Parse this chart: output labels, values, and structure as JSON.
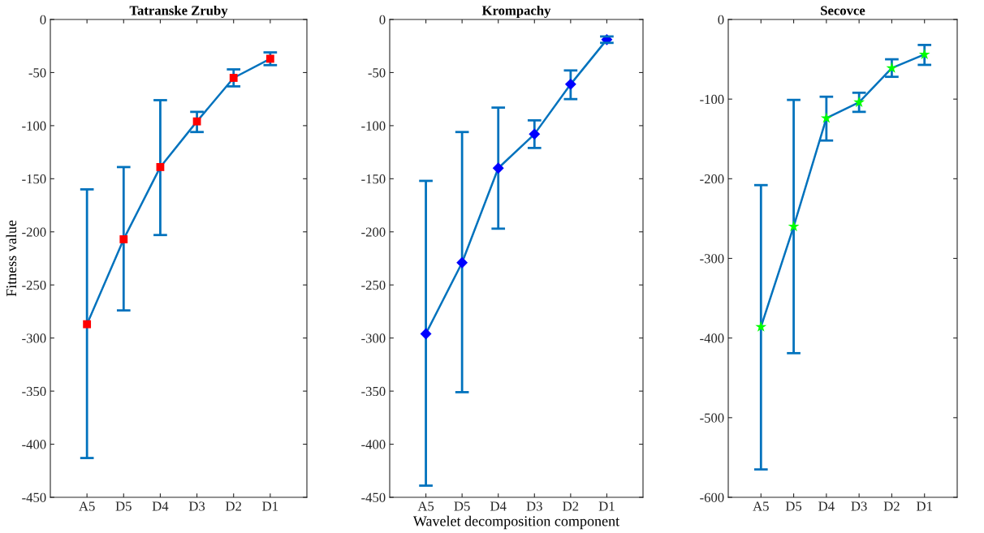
{
  "chart_data": [
    {
      "type": "line",
      "title": "Tatranske Zruby",
      "ylabel": "Fitness value",
      "categories": [
        "A5",
        "D5",
        "D4",
        "D3",
        "D2",
        "D1"
      ],
      "marker": "square",
      "ylim": [
        -450,
        0
      ],
      "yticks": [
        -450,
        -400,
        -350,
        -300,
        -250,
        -200,
        -150,
        -100,
        -50,
        0
      ],
      "grid": false,
      "series": [
        {
          "color": "#0072bd",
          "colors": [
            "#ff0000",
            "#ff0000",
            "#ff0000",
            "#ff0000",
            "#ff0000",
            "#ff0000"
          ],
          "values": [
            -287,
            -207,
            -139,
            -96,
            -55,
            -37
          ],
          "errors": [
            [
              -413,
              -160
            ],
            [
              -274,
              -139
            ],
            [
              -203,
              -76
            ],
            [
              -106,
              -87
            ],
            [
              -63,
              -47
            ],
            [
              -43,
              -31
            ]
          ]
        }
      ]
    },
    {
      "type": "line",
      "title": "Krompachy",
      "xlabel": "Wavelet decomposition component",
      "categories": [
        "A5",
        "D5",
        "D4",
        "D3",
        "D2",
        "D1"
      ],
      "marker": "diamond",
      "ylim": [
        -450,
        0
      ],
      "yticks": [
        -450,
        -400,
        -350,
        -300,
        -250,
        -200,
        -150,
        -100,
        -50,
        0
      ],
      "grid": false,
      "series": [
        {
          "color": "#0072bd",
          "colors": [
            "#0000ff",
            "#0000ff",
            "#0000ff",
            "#0000ff",
            "#0000ff",
            "#0000ff"
          ],
          "values": [
            -296,
            -229,
            -140,
            -108,
            -61,
            -19
          ],
          "errors": [
            [
              -439,
              -152
            ],
            [
              -351,
              -106
            ],
            [
              -197,
              -83
            ],
            [
              -121,
              -95
            ],
            [
              -75,
              -48
            ],
            [
              -22,
              -16
            ]
          ]
        }
      ]
    },
    {
      "type": "line",
      "title": "Secovce",
      "categories": [
        "A5",
        "D5",
        "D4",
        "D3",
        "D2",
        "D1"
      ],
      "marker": "star",
      "ylim": [
        -600,
        0
      ],
      "yticks": [
        -600,
        -500,
        -400,
        -300,
        -200,
        -100,
        0
      ],
      "grid": false,
      "series": [
        {
          "color": "#0072bd",
          "colors": [
            "#00ff00",
            "#00ff00",
            "#00ff00",
            "#00ff00",
            "#00ff00",
            "#00ff00"
          ],
          "values": [
            -386,
            -260,
            -124,
            -104,
            -61,
            -44
          ],
          "errors": [
            [
              -565,
              -208
            ],
            [
              -419,
              -101
            ],
            [
              -152,
              -97
            ],
            [
              -116,
              -92
            ],
            [
              -72,
              -50
            ],
            [
              -57,
              -32
            ]
          ]
        }
      ]
    }
  ]
}
